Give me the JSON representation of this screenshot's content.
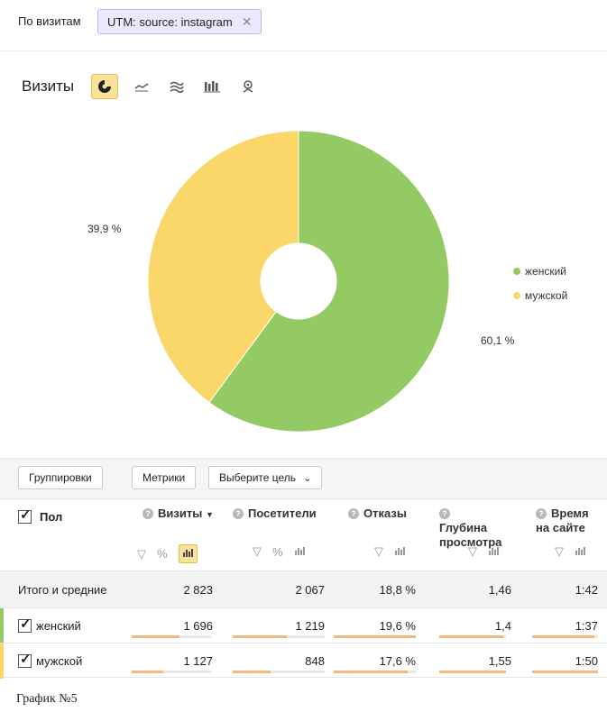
{
  "filter": {
    "label": "По визитам",
    "chip": "UTM: source: instagram",
    "close_icon": "close-icon"
  },
  "chart": {
    "title": "Визиты",
    "view_icons": [
      "pie-chart-icon",
      "line-chart-icon",
      "area-chart-icon",
      "bar-chart-icon",
      "map-icon"
    ],
    "active_view": 0
  },
  "chart_data": {
    "type": "pie",
    "style": "donut",
    "categories": [
      "женский",
      "мужской"
    ],
    "values": [
      60.1,
      39.9
    ],
    "labels": [
      "60,1 %",
      "39,9 %"
    ],
    "colors": [
      "#93ca63",
      "#fbd669"
    ],
    "legend": "right"
  },
  "table": {
    "groupings_button": "Группировки",
    "metrics_button": "Метрики",
    "goal_select": "Выберите цель",
    "dimension_header": "Пол",
    "columns": [
      {
        "label": "Визиты",
        "sort_arrow": "▼"
      },
      {
        "label": "Посетители"
      },
      {
        "label": "Отказы"
      },
      {
        "label": "Глубина просмотра"
      },
      {
        "label": "Время на сайте"
      }
    ],
    "total": {
      "label": "Итого и средние",
      "values": [
        "2 823",
        "2 067",
        "18,8 %",
        "1,46",
        "1:42"
      ]
    },
    "rows": [
      {
        "label": "женский",
        "values": [
          "1 696",
          "1 219",
          "19,6 %",
          "1,4",
          "1:37"
        ],
        "color": "#93ca63",
        "bar_fractions": [
          0.6,
          0.59,
          1.0,
          0.96,
          0.95
        ]
      },
      {
        "label": "мужской",
        "values": [
          "1 127",
          "848",
          "17,6 %",
          "1,55",
          "1:50"
        ],
        "color": "#fbd669",
        "bar_fractions": [
          0.4,
          0.41,
          0.9,
          1.0,
          1.0
        ]
      }
    ]
  },
  "caption": "График №5"
}
